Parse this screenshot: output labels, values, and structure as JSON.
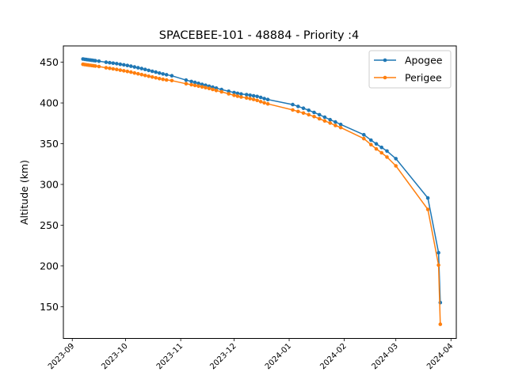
{
  "chart_data": {
    "type": "line",
    "title": "SPACEBEE-101 - 48884 - Priority :4",
    "xlabel": "",
    "ylabel": "Altitude (km)",
    "ylim": [
      111,
      470
    ],
    "xlim": [
      "2023-08-27",
      "2024-04-04"
    ],
    "yticks": [
      150,
      200,
      250,
      300,
      350,
      400,
      450
    ],
    "xticks": [
      "2023-09",
      "2023-10",
      "2023-11",
      "2023-12",
      "2024-01",
      "2024-02",
      "2024-03",
      "2024-04"
    ],
    "grid": false,
    "legend_position": "top-right",
    "series": [
      {
        "name": "Apogee",
        "color": "#1f77b4",
        "points": [
          [
            "2023-09-07",
            454.0
          ],
          [
            "2023-09-08",
            453.6
          ],
          [
            "2023-09-09",
            453.3
          ],
          [
            "2023-09-10",
            453.0
          ],
          [
            "2023-09-11",
            452.7
          ],
          [
            "2023-09-12",
            452.4
          ],
          [
            "2023-09-13",
            452.1
          ],
          [
            "2023-09-14",
            451.8
          ],
          [
            "2023-09-16",
            451.2
          ],
          [
            "2023-09-20",
            450.0
          ],
          [
            "2023-09-22",
            449.4
          ],
          [
            "2023-09-24",
            448.8
          ],
          [
            "2023-09-26",
            448.2
          ],
          [
            "2023-09-28",
            447.5
          ],
          [
            "2023-09-30",
            446.8
          ],
          [
            "2023-10-02",
            446.0
          ],
          [
            "2023-10-04",
            445.1
          ],
          [
            "2023-10-06",
            444.2
          ],
          [
            "2023-10-08",
            443.2
          ],
          [
            "2023-10-10",
            442.2
          ],
          [
            "2023-10-12",
            441.1
          ],
          [
            "2023-10-14",
            440.0
          ],
          [
            "2023-10-16",
            438.9
          ],
          [
            "2023-10-18",
            437.8
          ],
          [
            "2023-10-20",
            436.7
          ],
          [
            "2023-10-22",
            435.6
          ],
          [
            "2023-10-24",
            434.6
          ],
          [
            "2023-10-27",
            433.4
          ],
          [
            "2023-11-04",
            428.0
          ],
          [
            "2023-11-07",
            426.4
          ],
          [
            "2023-11-09",
            425.2
          ],
          [
            "2023-11-11",
            424.0
          ],
          [
            "2023-11-13",
            422.8
          ],
          [
            "2023-11-15",
            421.7
          ],
          [
            "2023-11-17",
            420.5
          ],
          [
            "2023-11-19",
            419.4
          ],
          [
            "2023-11-21",
            418.2
          ],
          [
            "2023-11-24",
            416.5
          ],
          [
            "2023-11-28",
            414.3
          ],
          [
            "2023-12-01",
            412.8
          ],
          [
            "2023-12-03",
            411.8
          ],
          [
            "2023-12-05",
            411.0
          ],
          [
            "2023-12-08",
            410.2
          ],
          [
            "2023-12-10",
            409.5
          ],
          [
            "2023-12-12",
            408.8
          ],
          [
            "2023-12-14",
            408.0
          ],
          [
            "2023-12-16",
            406.8
          ],
          [
            "2023-12-18",
            405.4
          ],
          [
            "2023-12-20",
            404.2
          ],
          [
            "2024-01-03",
            398.0
          ],
          [
            "2024-01-06",
            395.8
          ],
          [
            "2024-01-09",
            393.5
          ],
          [
            "2024-01-12",
            391.0
          ],
          [
            "2024-01-15",
            388.4
          ],
          [
            "2024-01-18",
            385.6
          ],
          [
            "2024-01-21",
            382.6
          ],
          [
            "2024-01-24",
            379.4
          ],
          [
            "2024-01-27",
            376.6
          ],
          [
            "2024-01-30",
            373.6
          ],
          [
            "2024-02-12",
            361.0
          ],
          [
            "2024-02-16",
            354.4
          ],
          [
            "2024-02-19",
            349.8
          ],
          [
            "2024-02-22",
            345.4
          ],
          [
            "2024-02-25",
            341.0
          ],
          [
            "2024-03-01",
            331.6
          ],
          [
            "2024-03-19",
            283.4
          ],
          [
            "2024-03-25",
            216.2
          ],
          [
            "2024-03-26",
            155.0
          ]
        ]
      },
      {
        "name": "Perigee",
        "color": "#ff7f0e",
        "points": [
          [
            "2023-09-07",
            447.5
          ],
          [
            "2023-09-08",
            447.1
          ],
          [
            "2023-09-09",
            446.8
          ],
          [
            "2023-09-10",
            446.5
          ],
          [
            "2023-09-11",
            446.2
          ],
          [
            "2023-09-12",
            445.9
          ],
          [
            "2023-09-13",
            445.6
          ],
          [
            "2023-09-14",
            445.3
          ],
          [
            "2023-09-16",
            444.7
          ],
          [
            "2023-09-20",
            443.2
          ],
          [
            "2023-09-22",
            442.5
          ],
          [
            "2023-09-24",
            441.8
          ],
          [
            "2023-09-26",
            441.1
          ],
          [
            "2023-09-28",
            440.3
          ],
          [
            "2023-09-30",
            439.5
          ],
          [
            "2023-10-02",
            438.7
          ],
          [
            "2023-10-04",
            437.8
          ],
          [
            "2023-10-06",
            436.8
          ],
          [
            "2023-10-08",
            435.8
          ],
          [
            "2023-10-10",
            434.8
          ],
          [
            "2023-10-12",
            433.8
          ],
          [
            "2023-10-14",
            432.8
          ],
          [
            "2023-10-16",
            431.8
          ],
          [
            "2023-10-18",
            430.8
          ],
          [
            "2023-10-20",
            429.9
          ],
          [
            "2023-10-22",
            429.0
          ],
          [
            "2023-10-24",
            428.2
          ],
          [
            "2023-10-27",
            427.4
          ],
          [
            "2023-11-04",
            423.6
          ],
          [
            "2023-11-07",
            422.4
          ],
          [
            "2023-11-09",
            421.5
          ],
          [
            "2023-11-11",
            420.6
          ],
          [
            "2023-11-13",
            419.7
          ],
          [
            "2023-11-15",
            418.8
          ],
          [
            "2023-11-17",
            417.8
          ],
          [
            "2023-11-19",
            416.6
          ],
          [
            "2023-11-21",
            415.3
          ],
          [
            "2023-11-24",
            413.6
          ],
          [
            "2023-11-28",
            411.2
          ],
          [
            "2023-12-01",
            409.4
          ],
          [
            "2023-12-03",
            408.3
          ],
          [
            "2023-12-05",
            407.3
          ],
          [
            "2023-12-08",
            406.2
          ],
          [
            "2023-12-10",
            405.3
          ],
          [
            "2023-12-12",
            404.3
          ],
          [
            "2023-12-14",
            403.2
          ],
          [
            "2023-12-16",
            401.6
          ],
          [
            "2023-12-18",
            400.1
          ],
          [
            "2023-12-20",
            398.9
          ],
          [
            "2024-01-03",
            391.4
          ],
          [
            "2024-01-06",
            389.6
          ],
          [
            "2024-01-09",
            387.6
          ],
          [
            "2024-01-12",
            385.6
          ],
          [
            "2024-01-15",
            383.2
          ],
          [
            "2024-01-18",
            380.6
          ],
          [
            "2024-01-21",
            378.0
          ],
          [
            "2024-01-24",
            375.4
          ],
          [
            "2024-01-27",
            372.4
          ],
          [
            "2024-01-30",
            369.8
          ],
          [
            "2024-02-12",
            356.2
          ],
          [
            "2024-02-16",
            348.8
          ],
          [
            "2024-02-19",
            343.6
          ],
          [
            "2024-02-22",
            338.8
          ],
          [
            "2024-02-25",
            333.6
          ],
          [
            "2024-03-01",
            322.8
          ],
          [
            "2024-03-19",
            269.4
          ],
          [
            "2024-03-25",
            201.0
          ],
          [
            "2024-03-26",
            128.4
          ]
        ]
      }
    ]
  }
}
